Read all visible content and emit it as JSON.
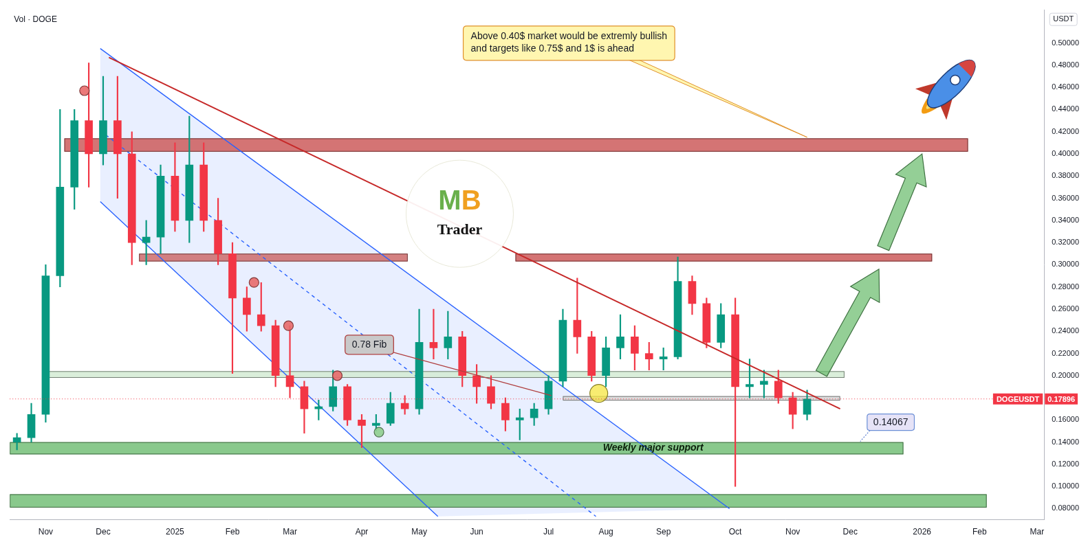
{
  "chart_data": {
    "type": "candlestick",
    "title": "Vol · DOGE",
    "y_label": "USDT",
    "categories": [
      null,
      null,
      "Nov",
      null,
      null,
      null,
      "Dec",
      null,
      null,
      null,
      null,
      "2025",
      null,
      null,
      null,
      "Feb",
      null,
      null,
      null,
      "Mar",
      null,
      null,
      null,
      null,
      "Apr",
      null,
      null,
      null,
      "May",
      null,
      null,
      null,
      "Jun",
      null,
      null,
      null,
      null,
      "Jul",
      null,
      null,
      null,
      "Aug",
      null,
      null,
      null,
      "Sep",
      null,
      null,
      null,
      null,
      "Oct",
      null,
      null,
      null,
      "Nov",
      null,
      null,
      null,
      "Dec",
      null,
      null,
      null,
      null,
      "2026",
      null,
      null,
      null,
      "Feb",
      null,
      null,
      null,
      "Mar"
    ],
    "open": [
      0.14,
      0.144,
      0.165,
      0.29,
      0.37,
      0.43,
      0.4,
      0.43,
      0.4,
      0.32,
      0.325,
      0.38,
      0.34,
      0.39,
      0.34,
      0.31,
      0.27,
      0.255,
      0.245,
      0.2,
      0.19,
      0.17,
      0.172,
      0.19,
      0.16,
      0.155,
      0.157,
      0.175,
      0.17,
      0.23,
      0.225,
      0.235,
      0.2,
      0.19,
      0.175,
      0.16,
      0.162,
      0.17,
      0.195,
      0.25,
      0.235,
      0.2,
      0.225,
      0.235,
      0.22,
      0.215,
      0.217,
      0.285,
      0.265,
      0.23,
      0.255,
      0.19,
      0.192,
      0.195,
      0.18,
      0.165,
      null,
      null,
      null,
      null,
      null,
      null,
      null,
      null,
      null,
      null,
      null,
      null,
      null,
      null,
      null,
      null
    ],
    "high": [
      0.148,
      0.175,
      0.3,
      0.44,
      0.44,
      0.482,
      0.47,
      0.47,
      0.42,
      0.34,
      0.39,
      0.41,
      0.434,
      0.41,
      0.36,
      0.32,
      0.28,
      0.284,
      0.25,
      0.245,
      0.195,
      0.178,
      0.205,
      0.192,
      0.165,
      0.165,
      0.185,
      0.182,
      0.26,
      0.26,
      0.258,
      0.24,
      0.21,
      0.2,
      0.18,
      0.17,
      0.175,
      0.2,
      0.26,
      0.288,
      0.24,
      0.235,
      0.255,
      0.245,
      0.23,
      0.225,
      0.307,
      0.29,
      0.27,
      0.265,
      0.27,
      0.215,
      0.205,
      0.205,
      0.185,
      0.187,
      null,
      null,
      null,
      null,
      null,
      null,
      null,
      null,
      null,
      null,
      null,
      null,
      null,
      null,
      null,
      null
    ],
    "low": [
      0.133,
      0.14,
      0.158,
      0.28,
      0.35,
      0.37,
      0.39,
      0.36,
      0.3,
      0.3,
      0.31,
      0.33,
      0.32,
      0.33,
      0.3,
      0.202,
      0.24,
      0.24,
      0.19,
      0.18,
      0.148,
      0.16,
      0.168,
      0.155,
      0.135,
      0.15,
      0.155,
      0.165,
      0.165,
      0.215,
      0.215,
      0.19,
      0.175,
      0.17,
      0.15,
      0.142,
      0.155,
      0.165,
      0.19,
      0.22,
      0.195,
      0.19,
      0.215,
      0.205,
      0.205,
      0.205,
      0.215,
      0.255,
      0.225,
      0.225,
      0.1,
      0.18,
      0.18,
      0.175,
      0.152,
      0.16,
      null,
      null,
      null,
      null,
      null,
      null,
      null,
      null,
      null,
      null,
      null,
      null,
      null,
      null,
      null,
      null
    ],
    "close": [
      0.144,
      0.165,
      0.29,
      0.37,
      0.43,
      0.4,
      0.43,
      0.4,
      0.32,
      0.325,
      0.38,
      0.34,
      0.39,
      0.34,
      0.31,
      0.27,
      0.255,
      0.245,
      0.2,
      0.19,
      0.17,
      0.172,
      0.19,
      0.16,
      0.155,
      0.157,
      0.175,
      0.17,
      0.23,
      0.225,
      0.235,
      0.2,
      0.19,
      0.175,
      0.16,
      0.162,
      0.17,
      0.195,
      0.25,
      0.235,
      0.2,
      0.225,
      0.235,
      0.22,
      0.215,
      0.217,
      0.285,
      0.265,
      0.23,
      0.255,
      0.19,
      0.192,
      0.195,
      0.18,
      0.165,
      0.17896,
      null,
      null,
      null,
      null,
      null,
      null,
      null,
      null,
      null,
      null,
      null,
      null,
      null,
      null,
      null,
      null
    ],
    "ylim": [
      0.07,
      0.53
    ],
    "yticks": [
      {
        "value": 0.08,
        "label": "0.08000"
      },
      {
        "value": 0.1,
        "label": "0.10000"
      },
      {
        "value": 0.12,
        "label": "0.12000"
      },
      {
        "value": 0.14,
        "label": "0.14000"
      },
      {
        "value": 0.16,
        "label": "0.16000"
      },
      {
        "value": 0.2,
        "label": "0.20000"
      },
      {
        "value": 0.22,
        "label": "0.22000"
      },
      {
        "value": 0.24,
        "label": "0.24000"
      },
      {
        "value": 0.26,
        "label": "0.26000"
      },
      {
        "value": 0.28,
        "label": "0.28000"
      },
      {
        "value": 0.3,
        "label": "0.30000"
      },
      {
        "value": 0.32,
        "label": "0.32000"
      },
      {
        "value": 0.34,
        "label": "0.34000"
      },
      {
        "value": 0.36,
        "label": "0.36000"
      },
      {
        "value": 0.38,
        "label": "0.38000"
      },
      {
        "value": 0.4,
        "label": "0.40000"
      },
      {
        "value": 0.42,
        "label": "0.42000"
      },
      {
        "value": 0.44,
        "label": "0.44000"
      },
      {
        "value": 0.46,
        "label": "0.46000"
      },
      {
        "value": 0.48,
        "label": "0.48000"
      },
      {
        "value": 0.5,
        "label": "0.50000"
      }
    ],
    "grid": false,
    "last_price": {
      "name": "DOGEUSDT",
      "value": 0.17896,
      "color": "#f23645"
    },
    "zones": [
      {
        "low": 0.402,
        "high": 0.414,
        "x": [
          3.3,
          66.2
        ],
        "color": "#cd5c5c"
      },
      {
        "low": 0.303,
        "high": 0.31,
        "x": [
          8.5,
          27.2
        ],
        "color": "#cd6b6b"
      },
      {
        "low": 0.303,
        "high": 0.31,
        "x": [
          34.7,
          63.7
        ],
        "color": "#cd5c5c"
      },
      {
        "low": 0.198,
        "high": 0.204,
        "x": [
          1.9,
          57.6
        ],
        "color": "#d3ebd3"
      },
      {
        "low": 0.1775,
        "high": 0.1815,
        "x": [
          38.0,
          57.3
        ],
        "color": "#d6d6d6"
      },
      {
        "low": 0.129,
        "high": 0.14,
        "x": [
          -0.5,
          61.7
        ],
        "color": "#74c078",
        "label": "Weekly major support"
      },
      {
        "low": 0.081,
        "high": 0.093,
        "x": [
          -0.5,
          67.5
        ],
        "color": "#74c078"
      }
    ],
    "channel": {
      "color": "#2962ff",
      "upper": {
        "points": [
          [
            5.8,
            0.495
          ],
          [
            49.6,
            0.08
          ]
        ],
        "line_style": "solid"
      },
      "lower": {
        "points": [
          [
            5.8,
            0.357
          ],
          [
            29.3,
            0.073
          ]
        ],
        "line_style": "solid"
      },
      "middle": {
        "points": [
          [
            5.8,
            0.421
          ],
          [
            40.3,
            0.073
          ]
        ],
        "line_style": "dashed"
      }
    },
    "lines": [
      {
        "points": [
          [
            6.4,
            0.487
          ],
          [
            57.3,
            0.17
          ]
        ],
        "color": "#c62828",
        "line_style": "solid"
      }
    ],
    "markers": [
      {
        "x": 4.7,
        "y": 0.457,
        "color": "#e86a6a",
        "marker": "circle"
      },
      {
        "x": 16.5,
        "y": 0.284,
        "color": "#e86a6a",
        "marker": "circle"
      },
      {
        "x": 18.9,
        "y": 0.245,
        "color": "#e86a6a",
        "marker": "circle"
      },
      {
        "x": 22.3,
        "y": 0.2,
        "color": "#e86a6a",
        "marker": "circle"
      },
      {
        "x": 25.2,
        "y": 0.149,
        "color": "#8fce8f",
        "marker": "circle"
      },
      {
        "x": 40.5,
        "y": 0.184,
        "color": "#f5e642",
        "marker": "big_circle"
      }
    ],
    "arrows": [
      {
        "from": [
          56.0,
          0.202
        ],
        "to": [
          60.0,
          0.296
        ],
        "color": "#66bb6a"
      },
      {
        "from": [
          60.3,
          0.315
        ],
        "to": [
          63.0,
          0.4
        ],
        "color": "#66bb6a"
      }
    ],
    "annotations": {
      "note": {
        "lines": [
          "Above 0.40$ market would be extremly bullish",
          "and targets like 0.75$ and 1$ is ahead"
        ],
        "x": 55.0,
        "y": 0.415
      },
      "fib": {
        "text": "0.78 Fib",
        "x": 37.2,
        "y": 0.182
      },
      "price_label": {
        "value": 0.14067,
        "x": 58.7
      }
    },
    "logo": {
      "mark": "MB",
      "name": "Trader"
    }
  }
}
